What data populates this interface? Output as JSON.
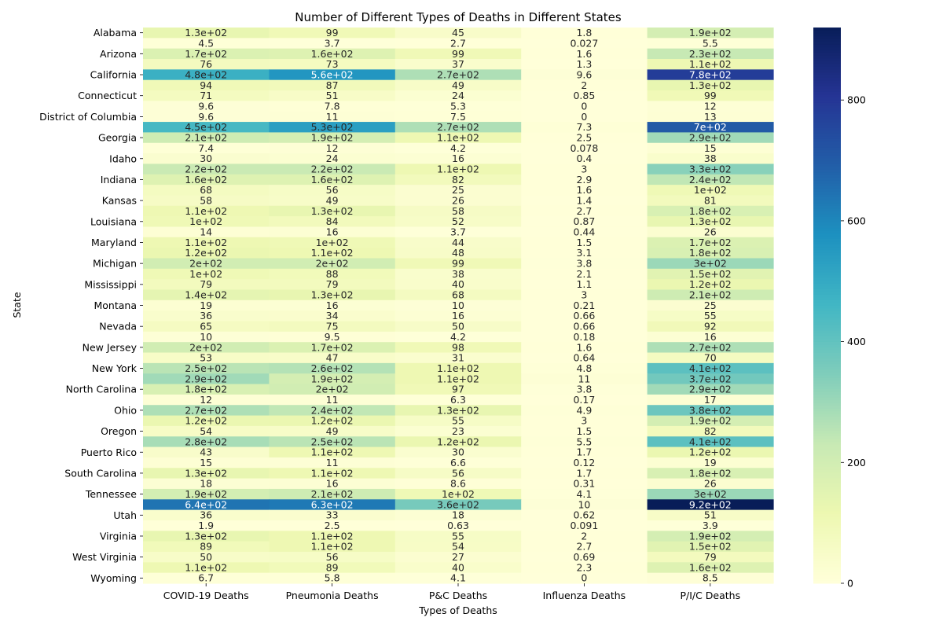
{
  "chart_data": {
    "type": "heatmap",
    "title": "Number of Different Types of Deaths in Different States",
    "xlabel": "Types of Deaths",
    "ylabel": "State",
    "columns": [
      "COVID-19 Deaths",
      "Pneumonia Deaths",
      "P&C Deaths",
      "Influenza Deaths",
      "P/I/C Deaths"
    ],
    "row_labels": [
      "Alabama",
      "",
      "Arizona",
      "",
      "California",
      "",
      "Connecticut",
      "",
      "District of Columbia",
      "",
      "Georgia",
      "",
      "Idaho",
      "",
      "Indiana",
      "",
      "Kansas",
      "",
      "Louisiana",
      "",
      "Maryland",
      "",
      "Michigan",
      "",
      "Mississippi",
      "",
      "Montana",
      "",
      "Nevada",
      "",
      "New Jersey",
      "",
      "New York",
      "",
      "North Carolina",
      "",
      "Ohio",
      "",
      "Oregon",
      "",
      "Puerto Rico",
      "",
      "South Carolina",
      "",
      "Tennessee",
      "",
      "Utah",
      "",
      "Virginia",
      "",
      "West Virginia",
      "",
      "Wyoming"
    ],
    "cells": [
      [
        [
          130,
          "1.3e+02"
        ],
        [
          99,
          "99"
        ],
        [
          45,
          "45"
        ],
        [
          1.8,
          "1.8"
        ],
        [
          190,
          "1.9e+02"
        ]
      ],
      [
        [
          4.5,
          "4.5"
        ],
        [
          3.7,
          "3.7"
        ],
        [
          2.7,
          "2.7"
        ],
        [
          0.027,
          "0.027"
        ],
        [
          5.5,
          "5.5"
        ]
      ],
      [
        [
          170,
          "1.7e+02"
        ],
        [
          160,
          "1.6e+02"
        ],
        [
          99,
          "99"
        ],
        [
          1.6,
          "1.6"
        ],
        [
          230,
          "2.3e+02"
        ]
      ],
      [
        [
          76,
          "76"
        ],
        [
          73,
          "73"
        ],
        [
          37,
          "37"
        ],
        [
          1.3,
          "1.3"
        ],
        [
          110,
          "1.1e+02"
        ]
      ],
      [
        [
          480,
          "4.8e+02"
        ],
        [
          560,
          "5.6e+02"
        ],
        [
          270,
          "2.7e+02"
        ],
        [
          9.6,
          "9.6"
        ],
        [
          780,
          "7.8e+02"
        ]
      ],
      [
        [
          94,
          "94"
        ],
        [
          87,
          "87"
        ],
        [
          49,
          "49"
        ],
        [
          2,
          "2"
        ],
        [
          130,
          "1.3e+02"
        ]
      ],
      [
        [
          71,
          "71"
        ],
        [
          51,
          "51"
        ],
        [
          24,
          "24"
        ],
        [
          0.85,
          "0.85"
        ],
        [
          99,
          "99"
        ]
      ],
      [
        [
          9.6,
          "9.6"
        ],
        [
          7.8,
          "7.8"
        ],
        [
          5.3,
          "5.3"
        ],
        [
          0,
          "0"
        ],
        [
          12,
          "12"
        ]
      ],
      [
        [
          9.6,
          "9.6"
        ],
        [
          11,
          "11"
        ],
        [
          7.5,
          "7.5"
        ],
        [
          0,
          "0"
        ],
        [
          13,
          "13"
        ]
      ],
      [
        [
          450,
          "4.5e+02"
        ],
        [
          530,
          "5.3e+02"
        ],
        [
          270,
          "2.7e+02"
        ],
        [
          7.3,
          "7.3"
        ],
        [
          700,
          "7e+02"
        ]
      ],
      [
        [
          210,
          "2.1e+02"
        ],
        [
          190,
          "1.9e+02"
        ],
        [
          110,
          "1.1e+02"
        ],
        [
          2.5,
          "2.5"
        ],
        [
          290,
          "2.9e+02"
        ]
      ],
      [
        [
          7.4,
          "7.4"
        ],
        [
          12,
          "12"
        ],
        [
          4.2,
          "4.2"
        ],
        [
          0.078,
          "0.078"
        ],
        [
          15,
          "15"
        ]
      ],
      [
        [
          30,
          "30"
        ],
        [
          24,
          "24"
        ],
        [
          16,
          "16"
        ],
        [
          0.4,
          "0.4"
        ],
        [
          38,
          "38"
        ]
      ],
      [
        [
          220,
          "2.2e+02"
        ],
        [
          220,
          "2.2e+02"
        ],
        [
          110,
          "1.1e+02"
        ],
        [
          3,
          "3"
        ],
        [
          330,
          "3.3e+02"
        ]
      ],
      [
        [
          160,
          "1.6e+02"
        ],
        [
          160,
          "1.6e+02"
        ],
        [
          82,
          "82"
        ],
        [
          2.9,
          "2.9"
        ],
        [
          240,
          "2.4e+02"
        ]
      ],
      [
        [
          68,
          "68"
        ],
        [
          56,
          "56"
        ],
        [
          25,
          "25"
        ],
        [
          1.6,
          "1.6"
        ],
        [
          100,
          "1e+02"
        ]
      ],
      [
        [
          58,
          "58"
        ],
        [
          49,
          "49"
        ],
        [
          26,
          "26"
        ],
        [
          1.4,
          "1.4"
        ],
        [
          81,
          "81"
        ]
      ],
      [
        [
          110,
          "1.1e+02"
        ],
        [
          130,
          "1.3e+02"
        ],
        [
          58,
          "58"
        ],
        [
          2.7,
          "2.7"
        ],
        [
          180,
          "1.8e+02"
        ]
      ],
      [
        [
          100,
          "1e+02"
        ],
        [
          84,
          "84"
        ],
        [
          52,
          "52"
        ],
        [
          0.87,
          "0.87"
        ],
        [
          130,
          "1.3e+02"
        ]
      ],
      [
        [
          14,
          "14"
        ],
        [
          16,
          "16"
        ],
        [
          3.7,
          "3.7"
        ],
        [
          0.44,
          "0.44"
        ],
        [
          26,
          "26"
        ]
      ],
      [
        [
          110,
          "1.1e+02"
        ],
        [
          100,
          "1e+02"
        ],
        [
          44,
          "44"
        ],
        [
          1.5,
          "1.5"
        ],
        [
          170,
          "1.7e+02"
        ]
      ],
      [
        [
          120,
          "1.2e+02"
        ],
        [
          110,
          "1.1e+02"
        ],
        [
          48,
          "48"
        ],
        [
          3.1,
          "3.1"
        ],
        [
          180,
          "1.8e+02"
        ]
      ],
      [
        [
          200,
          "2e+02"
        ],
        [
          200,
          "2e+02"
        ],
        [
          99,
          "99"
        ],
        [
          3.8,
          "3.8"
        ],
        [
          300,
          "3e+02"
        ]
      ],
      [
        [
          100,
          "1e+02"
        ],
        [
          88,
          "88"
        ],
        [
          38,
          "38"
        ],
        [
          2.1,
          "2.1"
        ],
        [
          150,
          "1.5e+02"
        ]
      ],
      [
        [
          79,
          "79"
        ],
        [
          79,
          "79"
        ],
        [
          40,
          "40"
        ],
        [
          1.1,
          "1.1"
        ],
        [
          120,
          "1.2e+02"
        ]
      ],
      [
        [
          140,
          "1.4e+02"
        ],
        [
          130,
          "1.3e+02"
        ],
        [
          68,
          "68"
        ],
        [
          3,
          "3"
        ],
        [
          210,
          "2.1e+02"
        ]
      ],
      [
        [
          19,
          "19"
        ],
        [
          16,
          "16"
        ],
        [
          10,
          "10"
        ],
        [
          0.21,
          "0.21"
        ],
        [
          25,
          "25"
        ]
      ],
      [
        [
          36,
          "36"
        ],
        [
          34,
          "34"
        ],
        [
          16,
          "16"
        ],
        [
          0.66,
          "0.66"
        ],
        [
          55,
          "55"
        ]
      ],
      [
        [
          65,
          "65"
        ],
        [
          75,
          "75"
        ],
        [
          50,
          "50"
        ],
        [
          0.66,
          "0.66"
        ],
        [
          92,
          "92"
        ]
      ],
      [
        [
          10,
          "10"
        ],
        [
          9.5,
          "9.5"
        ],
        [
          4.2,
          "4.2"
        ],
        [
          0.18,
          "0.18"
        ],
        [
          16,
          "16"
        ]
      ],
      [
        [
          200,
          "2e+02"
        ],
        [
          170,
          "1.7e+02"
        ],
        [
          98,
          "98"
        ],
        [
          1.6,
          "1.6"
        ],
        [
          270,
          "2.7e+02"
        ]
      ],
      [
        [
          53,
          "53"
        ],
        [
          47,
          "47"
        ],
        [
          31,
          "31"
        ],
        [
          0.64,
          "0.64"
        ],
        [
          70,
          "70"
        ]
      ],
      [
        [
          250,
          "2.5e+02"
        ],
        [
          260,
          "2.6e+02"
        ],
        [
          110,
          "1.1e+02"
        ],
        [
          4.8,
          "4.8"
        ],
        [
          410,
          "4.1e+02"
        ]
      ],
      [
        [
          290,
          "2.9e+02"
        ],
        [
          190,
          "1.9e+02"
        ],
        [
          110,
          "1.1e+02"
        ],
        [
          11,
          "11"
        ],
        [
          370,
          "3.7e+02"
        ]
      ],
      [
        [
          180,
          "1.8e+02"
        ],
        [
          200,
          "2e+02"
        ],
        [
          97,
          "97"
        ],
        [
          3.8,
          "3.8"
        ],
        [
          290,
          "2.9e+02"
        ]
      ],
      [
        [
          12,
          "12"
        ],
        [
          11,
          "11"
        ],
        [
          6.3,
          "6.3"
        ],
        [
          0.17,
          "0.17"
        ],
        [
          17,
          "17"
        ]
      ],
      [
        [
          270,
          "2.7e+02"
        ],
        [
          240,
          "2.4e+02"
        ],
        [
          130,
          "1.3e+02"
        ],
        [
          4.9,
          "4.9"
        ],
        [
          380,
          "3.8e+02"
        ]
      ],
      [
        [
          120,
          "1.2e+02"
        ],
        [
          120,
          "1.2e+02"
        ],
        [
          55,
          "55"
        ],
        [
          3,
          "3"
        ],
        [
          190,
          "1.9e+02"
        ]
      ],
      [
        [
          54,
          "54"
        ],
        [
          49,
          "49"
        ],
        [
          23,
          "23"
        ],
        [
          1.5,
          "1.5"
        ],
        [
          82,
          "82"
        ]
      ],
      [
        [
          280,
          "2.8e+02"
        ],
        [
          250,
          "2.5e+02"
        ],
        [
          120,
          "1.2e+02"
        ],
        [
          5.5,
          "5.5"
        ],
        [
          410,
          "4.1e+02"
        ]
      ],
      [
        [
          43,
          "43"
        ],
        [
          110,
          "1.1e+02"
        ],
        [
          30,
          "30"
        ],
        [
          1.7,
          "1.7"
        ],
        [
          120,
          "1.2e+02"
        ]
      ],
      [
        [
          15,
          "15"
        ],
        [
          11,
          "11"
        ],
        [
          6.6,
          "6.6"
        ],
        [
          0.12,
          "0.12"
        ],
        [
          19,
          "19"
        ]
      ],
      [
        [
          130,
          "1.3e+02"
        ],
        [
          110,
          "1.1e+02"
        ],
        [
          56,
          "56"
        ],
        [
          1.7,
          "1.7"
        ],
        [
          180,
          "1.8e+02"
        ]
      ],
      [
        [
          18,
          "18"
        ],
        [
          16,
          "16"
        ],
        [
          8.6,
          "8.6"
        ],
        [
          0.31,
          "0.31"
        ],
        [
          26,
          "26"
        ]
      ],
      [
        [
          190,
          "1.9e+02"
        ],
        [
          210,
          "2.1e+02"
        ],
        [
          100,
          "1e+02"
        ],
        [
          4.1,
          "4.1"
        ],
        [
          300,
          "3e+02"
        ]
      ],
      [
        [
          640,
          "6.4e+02"
        ],
        [
          630,
          "6.3e+02"
        ],
        [
          360,
          "3.6e+02"
        ],
        [
          10,
          "10"
        ],
        [
          920,
          "9.2e+02"
        ]
      ],
      [
        [
          36,
          "36"
        ],
        [
          33,
          "33"
        ],
        [
          18,
          "18"
        ],
        [
          0.62,
          "0.62"
        ],
        [
          51,
          "51"
        ]
      ],
      [
        [
          1.9,
          "1.9"
        ],
        [
          2.5,
          "2.5"
        ],
        [
          0.63,
          "0.63"
        ],
        [
          0.091,
          "0.091"
        ],
        [
          3.9,
          "3.9"
        ]
      ],
      [
        [
          130,
          "1.3e+02"
        ],
        [
          110,
          "1.1e+02"
        ],
        [
          55,
          "55"
        ],
        [
          2,
          "2"
        ],
        [
          190,
          "1.9e+02"
        ]
      ],
      [
        [
          89,
          "89"
        ],
        [
          110,
          "1.1e+02"
        ],
        [
          54,
          "54"
        ],
        [
          2.7,
          "2.7"
        ],
        [
          150,
          "1.5e+02"
        ]
      ],
      [
        [
          50,
          "50"
        ],
        [
          56,
          "56"
        ],
        [
          27,
          "27"
        ],
        [
          0.69,
          "0.69"
        ],
        [
          79,
          "79"
        ]
      ],
      [
        [
          110,
          "1.1e+02"
        ],
        [
          89,
          "89"
        ],
        [
          40,
          "40"
        ],
        [
          2.3,
          "2.3"
        ],
        [
          160,
          "1.6e+02"
        ]
      ],
      [
        [
          6.7,
          "6.7"
        ],
        [
          5.8,
          "5.8"
        ],
        [
          4.1,
          "4.1"
        ],
        [
          0,
          "0"
        ],
        [
          8.5,
          "8.5"
        ]
      ]
    ],
    "colorbar": {
      "colormap": "YlGnBu",
      "vmin": 0,
      "vmax": 920,
      "ticks": [
        0,
        200,
        400,
        600,
        800
      ]
    },
    "grid": false
  }
}
